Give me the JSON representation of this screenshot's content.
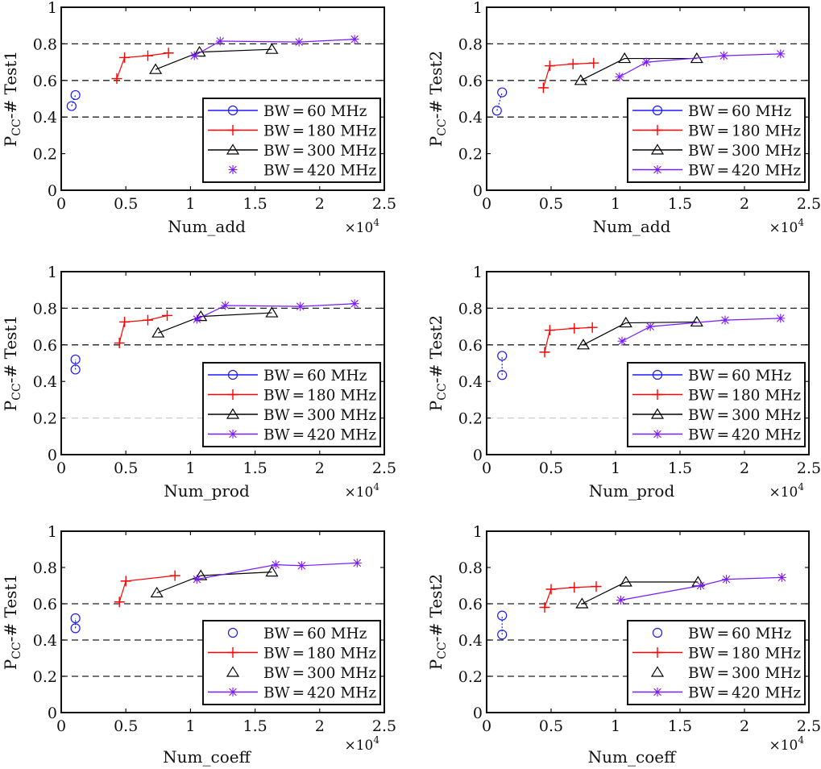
{
  "chart_data": [
    {
      "type": "line",
      "panel": "top-left",
      "xlabel": "Num_add",
      "ylabel": "P_CC-#Test1",
      "ylabel_main": "P",
      "ylabel_sub": "CC",
      "ylabel_rest": "-# Test1",
      "x_multiplier": "×10",
      "x_multiplier_exp": "4",
      "xlim": [
        0,
        2.5
      ],
      "ylim": [
        0,
        1
      ],
      "xticks": [
        "0",
        "0.5",
        "1",
        "1.5",
        "2",
        "2.5"
      ],
      "yticks": [
        "0",
        "0.2",
        "0.4",
        "0.6",
        "0.8",
        "1"
      ],
      "hlines": [
        0.4,
        0.6,
        0.8
      ],
      "legend_position": "lower-right",
      "series": [
        {
          "name": "BW = 60 MHz",
          "label_prefix": "BW",
          "label_value": "60 MHz",
          "color": "#1a1aff",
          "marker": "circle",
          "x": [
            0.08,
            0.11
          ],
          "y": [
            0.46,
            0.52
          ]
        },
        {
          "name": "BW = 180 MHz",
          "label_prefix": "BW",
          "label_value": "180 MHz",
          "color": "#ff0000",
          "marker": "plus",
          "x": [
            0.43,
            0.49,
            0.67,
            0.83
          ],
          "y": [
            0.61,
            0.725,
            0.735,
            0.75
          ]
        },
        {
          "name": "BW = 300 MHz",
          "label_prefix": "BW",
          "label_value": "300 MHz",
          "color": "#000000",
          "marker": "triangle",
          "x": [
            0.73,
            1.07,
            1.63
          ],
          "y": [
            0.66,
            0.755,
            0.77
          ]
        },
        {
          "name": "BW = 420 MHz",
          "label_prefix": "BW",
          "label_value": "420 MHz",
          "color": "#7a1aff",
          "marker": "star",
          "x": [
            1.03,
            1.23,
            1.84,
            2.27
          ],
          "y": [
            0.735,
            0.815,
            0.81,
            0.825
          ]
        }
      ]
    },
    {
      "type": "line",
      "panel": "top-right",
      "xlabel": "Num_add",
      "ylabel": "P_CC-#Test2",
      "ylabel_main": "P",
      "ylabel_sub": "CC",
      "ylabel_rest": "-# Test2",
      "x_multiplier": "×10",
      "x_multiplier_exp": "4",
      "xlim": [
        0,
        2.5
      ],
      "ylim": [
        0,
        1
      ],
      "xticks": [
        "0",
        "0.5",
        "1",
        "1.5",
        "2",
        "2.5"
      ],
      "yticks": [
        "0",
        "0.2",
        "0.4",
        "0.6",
        "0.8",
        "1"
      ],
      "hlines": [
        0.4,
        0.6,
        0.8
      ],
      "legend_position": "lower-right",
      "series": [
        {
          "name": "BW = 60 MHz",
          "label_prefix": "BW",
          "label_value": "60 MHz",
          "color": "#1a1aff",
          "marker": "circle",
          "x": [
            0.08,
            0.12
          ],
          "y": [
            0.435,
            0.535
          ]
        },
        {
          "name": "BW = 180 MHz",
          "label_prefix": "BW",
          "label_value": "180 MHz",
          "color": "#ff0000",
          "marker": "plus",
          "x": [
            0.44,
            0.49,
            0.67,
            0.83
          ],
          "y": [
            0.56,
            0.68,
            0.69,
            0.695
          ]
        },
        {
          "name": "BW = 300 MHz",
          "label_prefix": "BW",
          "label_value": "300 MHz",
          "color": "#000000",
          "marker": "triangle",
          "x": [
            0.73,
            1.07,
            1.63
          ],
          "y": [
            0.6,
            0.72,
            0.72
          ]
        },
        {
          "name": "BW = 420 MHz",
          "label_prefix": "BW",
          "label_value": "420 MHz",
          "color": "#7a1aff",
          "marker": "star",
          "x": [
            1.03,
            1.24,
            1.84,
            2.28
          ],
          "y": [
            0.62,
            0.7,
            0.735,
            0.745
          ]
        }
      ]
    },
    {
      "type": "line",
      "panel": "middle-left",
      "xlabel": "Num_prod",
      "ylabel": "P_CC-#Test1",
      "ylabel_main": "P",
      "ylabel_sub": "CC",
      "ylabel_rest": "-# Test1",
      "x_multiplier": "×10",
      "x_multiplier_exp": "4",
      "xlim": [
        0,
        2.5
      ],
      "ylim": [
        0,
        1
      ],
      "xticks": [
        "0",
        "0.5",
        "1",
        "1.5",
        "2",
        "2.5"
      ],
      "yticks": [
        "0",
        "0.2",
        "0.4",
        "0.6",
        "0.8",
        "1"
      ],
      "hlines": [
        0.2,
        0.6,
        0.8
      ],
      "legend_position": "lower-right",
      "series": [
        {
          "name": "BW = 60 MHz",
          "label_prefix": "BW",
          "label_value": "60 MHz",
          "color": "#1a1aff",
          "marker": "circle",
          "x": [
            0.11,
            0.11
          ],
          "y": [
            0.465,
            0.52
          ]
        },
        {
          "name": "BW = 180 MHz",
          "label_prefix": "BW",
          "label_value": "180 MHz",
          "color": "#ff0000",
          "marker": "plus",
          "x": [
            0.45,
            0.49,
            0.67,
            0.82
          ],
          "y": [
            0.61,
            0.725,
            0.735,
            0.76
          ]
        },
        {
          "name": "BW = 300 MHz",
          "label_prefix": "BW",
          "label_value": "300 MHz",
          "color": "#000000",
          "marker": "triangle",
          "x": [
            0.75,
            1.08,
            1.63
          ],
          "y": [
            0.665,
            0.755,
            0.775
          ]
        },
        {
          "name": "BW = 420 MHz",
          "label_prefix": "BW",
          "label_value": "420 MHz",
          "color": "#7a1aff",
          "marker": "star",
          "x": [
            1.05,
            1.27,
            1.85,
            2.27
          ],
          "y": [
            0.74,
            0.815,
            0.81,
            0.825
          ]
        }
      ]
    },
    {
      "type": "line",
      "panel": "middle-right",
      "xlabel": "Num_prod",
      "ylabel": "P_CC-#Test2",
      "ylabel_main": "P",
      "ylabel_sub": "CC",
      "ylabel_rest": "-# Test2",
      "x_multiplier": "×10",
      "x_multiplier_exp": "4",
      "xlim": [
        0,
        2.5
      ],
      "ylim": [
        0,
        1
      ],
      "xticks": [
        "0",
        "0.5",
        "1",
        "1.5",
        "2",
        "2.5"
      ],
      "yticks": [
        "0",
        "0.2",
        "0.4",
        "0.6",
        "0.8",
        "1"
      ],
      "hlines": [
        0.2,
        0.6,
        0.8
      ],
      "legend_position": "lower-right",
      "series": [
        {
          "name": "BW = 60 MHz",
          "label_prefix": "BW",
          "label_value": "60 MHz",
          "color": "#1a1aff",
          "marker": "circle",
          "x": [
            0.12,
            0.12
          ],
          "y": [
            0.435,
            0.54
          ]
        },
        {
          "name": "BW = 180 MHz",
          "label_prefix": "BW",
          "label_value": "180 MHz",
          "color": "#ff0000",
          "marker": "plus",
          "x": [
            0.45,
            0.49,
            0.68,
            0.82
          ],
          "y": [
            0.56,
            0.68,
            0.69,
            0.695
          ]
        },
        {
          "name": "BW = 300 MHz",
          "label_prefix": "BW",
          "label_value": "300 MHz",
          "color": "#000000",
          "marker": "triangle",
          "x": [
            0.75,
            1.08,
            1.63
          ],
          "y": [
            0.6,
            0.72,
            0.725
          ]
        },
        {
          "name": "BW = 420 MHz",
          "label_prefix": "BW",
          "label_value": "420 MHz",
          "color": "#7a1aff",
          "marker": "star",
          "x": [
            1.05,
            1.27,
            1.85,
            2.28
          ],
          "y": [
            0.62,
            0.7,
            0.735,
            0.745
          ]
        }
      ]
    },
    {
      "type": "line",
      "panel": "bottom-left",
      "xlabel": "Num_coeff",
      "ylabel": "P_CC-#Test1",
      "ylabel_main": "P",
      "ylabel_sub": "CC",
      "ylabel_rest": "-# Test1",
      "x_multiplier": "×10",
      "x_multiplier_exp": "4",
      "xlim": [
        0,
        2.5
      ],
      "ylim": [
        0,
        1
      ],
      "xticks": [
        "0",
        "0.5",
        "1",
        "1.5",
        "2",
        "2.5"
      ],
      "yticks": [
        "0",
        "0.2",
        "0.4",
        "0.6",
        "0.8",
        "1"
      ],
      "hlines": [
        0.2,
        0.4,
        0.6
      ],
      "legend_position": "lower-right",
      "series": [
        {
          "name": "BW = 60 MHz",
          "label_prefix": "BW",
          "label_value": "60 MHz",
          "color": "#1a1aff",
          "marker": "circle",
          "x": [
            0.11,
            0.11
          ],
          "y": [
            0.465,
            0.52
          ]
        },
        {
          "name": "BW = 180 MHz",
          "label_prefix": "BW",
          "label_value": "180 MHz",
          "color": "#ff0000",
          "marker": "plus",
          "x": [
            0.45,
            0.5,
            0.88
          ],
          "y": [
            0.61,
            0.725,
            0.755
          ]
        },
        {
          "name": "BW = 300 MHz",
          "label_prefix": "BW",
          "label_value": "300 MHz",
          "color": "#000000",
          "marker": "triangle",
          "x": [
            0.74,
            1.08,
            1.63
          ],
          "y": [
            0.66,
            0.755,
            0.775
          ]
        },
        {
          "name": "BW = 420 MHz",
          "label_prefix": "BW",
          "label_value": "420 MHz",
          "color": "#7a1aff",
          "marker": "star",
          "x": [
            1.05,
            1.66,
            1.86,
            2.29
          ],
          "y": [
            0.735,
            0.815,
            0.81,
            0.825
          ]
        }
      ]
    },
    {
      "type": "line",
      "panel": "bottom-right",
      "xlabel": "Num_coeff",
      "ylabel": "P_CC-#Test2",
      "ylabel_main": "P",
      "ylabel_sub": "CC",
      "ylabel_rest": "-# Test2",
      "x_multiplier": "×10",
      "x_multiplier_exp": "4",
      "xlim": [
        0,
        2.5
      ],
      "ylim": [
        0,
        1
      ],
      "xticks": [
        "0",
        "0.5",
        "1",
        "1.5",
        "2",
        "2.5"
      ],
      "yticks": [
        "0",
        "0.2",
        "0.4",
        "0.6",
        "0.8",
        "1"
      ],
      "hlines": [
        0.2,
        0.4,
        0.6
      ],
      "legend_position": "lower-right",
      "series": [
        {
          "name": "BW = 60 MHz",
          "label_prefix": "BW",
          "label_value": "60 MHz",
          "color": "#1a1aff",
          "marker": "circle",
          "x": [
            0.12,
            0.12
          ],
          "y": [
            0.43,
            0.535
          ]
        },
        {
          "name": "BW = 180 MHz",
          "label_prefix": "BW",
          "label_value": "180 MHz",
          "color": "#ff0000",
          "marker": "plus",
          "x": [
            0.45,
            0.5,
            0.68,
            0.85
          ],
          "y": [
            0.58,
            0.68,
            0.69,
            0.695
          ]
        },
        {
          "name": "BW = 300 MHz",
          "label_prefix": "BW",
          "label_value": "300 MHz",
          "color": "#000000",
          "marker": "triangle",
          "x": [
            0.74,
            1.08,
            1.64
          ],
          "y": [
            0.6,
            0.72,
            0.72
          ]
        },
        {
          "name": "BW = 420 MHz",
          "label_prefix": "BW",
          "label_value": "420 MHz",
          "color": "#7a1aff",
          "marker": "star",
          "x": [
            1.04,
            1.66,
            1.86,
            2.29
          ],
          "y": [
            0.62,
            0.7,
            0.735,
            0.745
          ]
        }
      ]
    }
  ]
}
